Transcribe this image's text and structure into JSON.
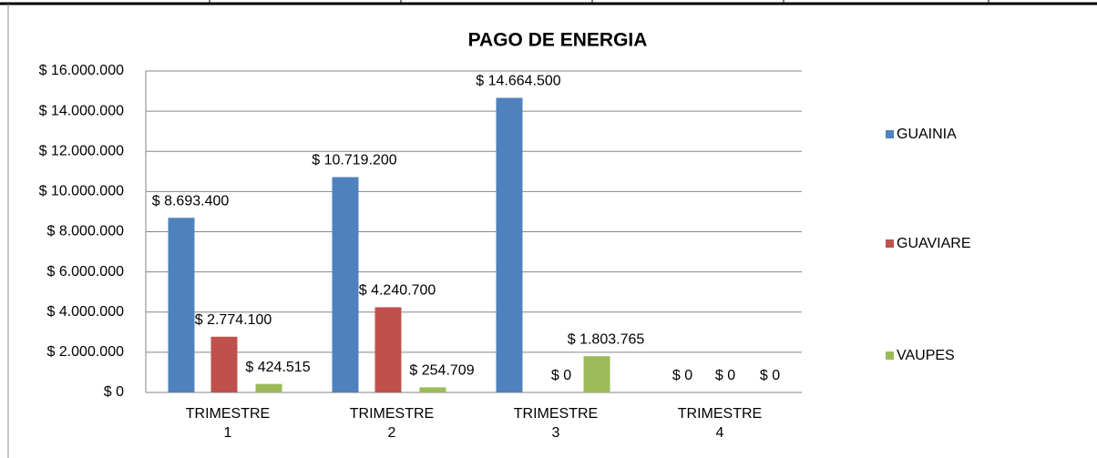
{
  "chart_data": {
    "type": "bar",
    "title": "PAGO DE ENERGIA",
    "categories": [
      "TRIMESTRE 1",
      "TRIMESTRE 2",
      "TRIMESTRE 3",
      "TRIMESTRE 4"
    ],
    "series": [
      {
        "name": "GUAINIA",
        "color": "#4f81bd",
        "values": [
          8693400,
          10719200,
          14664500,
          0
        ],
        "value_labels": [
          "$ 8.693.400",
          "$ 10.719.200",
          "$ 14.664.500",
          "$ 0"
        ]
      },
      {
        "name": "GUAVIARE",
        "color": "#c0504d",
        "values": [
          2774100,
          4240700,
          0,
          0
        ],
        "value_labels": [
          "$ 2.774.100",
          "$ 4.240.700",
          "$ 0",
          "$ 0"
        ]
      },
      {
        "name": "VAUPES",
        "color": "#9bbb59",
        "values": [
          424515,
          254709,
          1803765,
          0
        ],
        "value_labels": [
          "$ 424.515",
          "$ 254.709",
          "$ 1.803.765",
          "$ 0"
        ]
      }
    ],
    "ylim": [
      0,
      16000000
    ],
    "yticks": [
      {
        "value": 0,
        "label": "$ 0"
      },
      {
        "value": 2000000,
        "label": "$ 2.000.000"
      },
      {
        "value": 4000000,
        "label": "$ 4.000.000"
      },
      {
        "value": 6000000,
        "label": "$ 6.000.000"
      },
      {
        "value": 8000000,
        "label": "$ 8.000.000"
      },
      {
        "value": 10000000,
        "label": "$ 10.000.000"
      },
      {
        "value": 12000000,
        "label": "$ 12.000.000"
      },
      {
        "value": 14000000,
        "label": "$ 14.000.000"
      },
      {
        "value": 16000000,
        "label": "$ 16.000.000"
      }
    ],
    "grid": true,
    "legend": "right"
  }
}
